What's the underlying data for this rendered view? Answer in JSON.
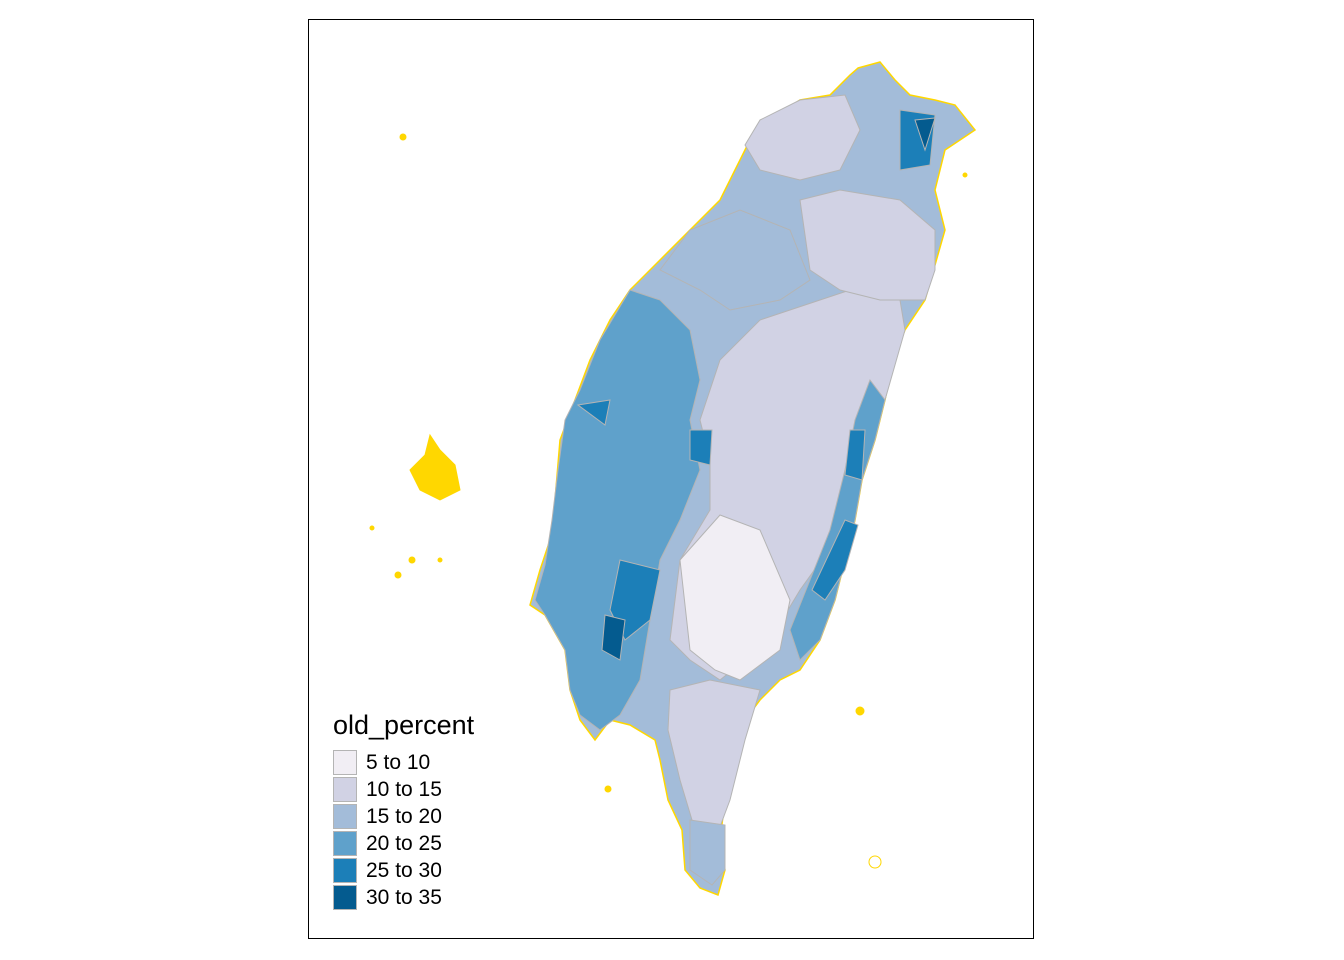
{
  "map": {
    "legend": {
      "title": "old_percent",
      "classes": [
        {
          "label": "5 to 10",
          "color": "#f1eef4"
        },
        {
          "label": "10 to 15",
          "color": "#d1d2e4"
        },
        {
          "label": "15 to 20",
          "color": "#a3bcd9"
        },
        {
          "label": "20 to 25",
          "color": "#5fa1cb"
        },
        {
          "label": "25 to 30",
          "color": "#1c7fb8"
        },
        {
          "label": "30 to 35",
          "color": "#045b8f"
        }
      ]
    },
    "border_color_county": "#ffd700",
    "border_color_township": "#b4b4b4"
  }
}
